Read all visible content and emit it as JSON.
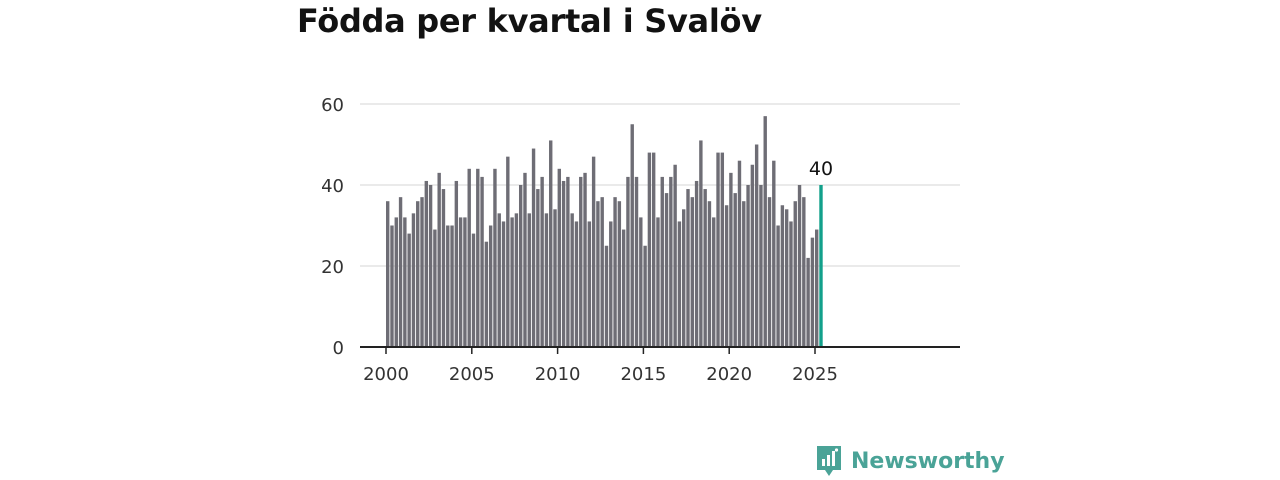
{
  "title": "Födda per kvartal i Svalöv",
  "brand": {
    "name": "Newsworthy",
    "color": "#4aa397"
  },
  "colors": {
    "bar": "#6e6d75",
    "highlight": "#12a08b",
    "grid": "#dddddd",
    "axis": "#222222"
  },
  "chart_data": {
    "type": "bar",
    "title": "Födda per kvartal i Svalöv",
    "xlabel": "",
    "ylabel": "",
    "ylim": [
      0,
      60
    ],
    "yticks": [
      0,
      20,
      40,
      60
    ],
    "xticks": [
      2000,
      2005,
      2010,
      2015,
      2020,
      2025
    ],
    "grid": true,
    "x_start_year": 2000,
    "categories": [
      "2000 Q1",
      "2000 Q2",
      "2000 Q3",
      "2000 Q4",
      "2001 Q1",
      "2001 Q2",
      "2001 Q3",
      "2001 Q4",
      "2002 Q1",
      "2002 Q2",
      "2002 Q3",
      "2002 Q4",
      "2003 Q1",
      "2003 Q2",
      "2003 Q3",
      "2003 Q4",
      "2004 Q1",
      "2004 Q2",
      "2004 Q3",
      "2004 Q4",
      "2005 Q1",
      "2005 Q2",
      "2005 Q3",
      "2005 Q4",
      "2006 Q1",
      "2006 Q2",
      "2006 Q3",
      "2006 Q4",
      "2007 Q1",
      "2007 Q2",
      "2007 Q3",
      "2007 Q4",
      "2008 Q1",
      "2008 Q2",
      "2008 Q3",
      "2008 Q4",
      "2009 Q1",
      "2009 Q2",
      "2009 Q3",
      "2009 Q4",
      "2010 Q1",
      "2010 Q2",
      "2010 Q3",
      "2010 Q4",
      "2011 Q1",
      "2011 Q2",
      "2011 Q3",
      "2011 Q4",
      "2012 Q1",
      "2012 Q2",
      "2012 Q3",
      "2012 Q4",
      "2013 Q1",
      "2013 Q2",
      "2013 Q3",
      "2013 Q4",
      "2014 Q1",
      "2014 Q2",
      "2014 Q3",
      "2014 Q4",
      "2015 Q1",
      "2015 Q2",
      "2015 Q3",
      "2015 Q4",
      "2016 Q1",
      "2016 Q2",
      "2016 Q3",
      "2016 Q4",
      "2017 Q1",
      "2017 Q2",
      "2017 Q3",
      "2017 Q4",
      "2018 Q1",
      "2018 Q2",
      "2018 Q3",
      "2018 Q4",
      "2019 Q1",
      "2019 Q2",
      "2019 Q3",
      "2019 Q4",
      "2020 Q1",
      "2020 Q2",
      "2020 Q3",
      "2020 Q4",
      "2021 Q1",
      "2021 Q2",
      "2021 Q3",
      "2021 Q4",
      "2022 Q1",
      "2022 Q2",
      "2022 Q3",
      "2022 Q4",
      "2023 Q1",
      "2023 Q2",
      "2023 Q3",
      "2023 Q4",
      "2024 Q1",
      "2024 Q2",
      "2024 Q3",
      "2024 Q4",
      "2025 Q1",
      "2025 Q2"
    ],
    "values": [
      36,
      30,
      32,
      37,
      32,
      28,
      33,
      36,
      37,
      41,
      40,
      29,
      43,
      39,
      30,
      30,
      41,
      32,
      32,
      44,
      28,
      44,
      42,
      26,
      30,
      44,
      33,
      31,
      47,
      32,
      33,
      40,
      43,
      33,
      49,
      39,
      42,
      33,
      51,
      34,
      44,
      41,
      42,
      33,
      31,
      42,
      43,
      31,
      47,
      36,
      37,
      25,
      31,
      37,
      36,
      29,
      42,
      55,
      42,
      32,
      25,
      48,
      48,
      32,
      42,
      38,
      42,
      45,
      31,
      34,
      39,
      37,
      41,
      51,
      39,
      36,
      32,
      48,
      48,
      35,
      43,
      38,
      46,
      36,
      40,
      45,
      50,
      40,
      57,
      37,
      46,
      30,
      35,
      34,
      31,
      36,
      40,
      37,
      22,
      27,
      29,
      40
    ],
    "highlight_index": 101,
    "annotations": [
      {
        "category": "2025 Q2",
        "label": "40"
      }
    ]
  }
}
